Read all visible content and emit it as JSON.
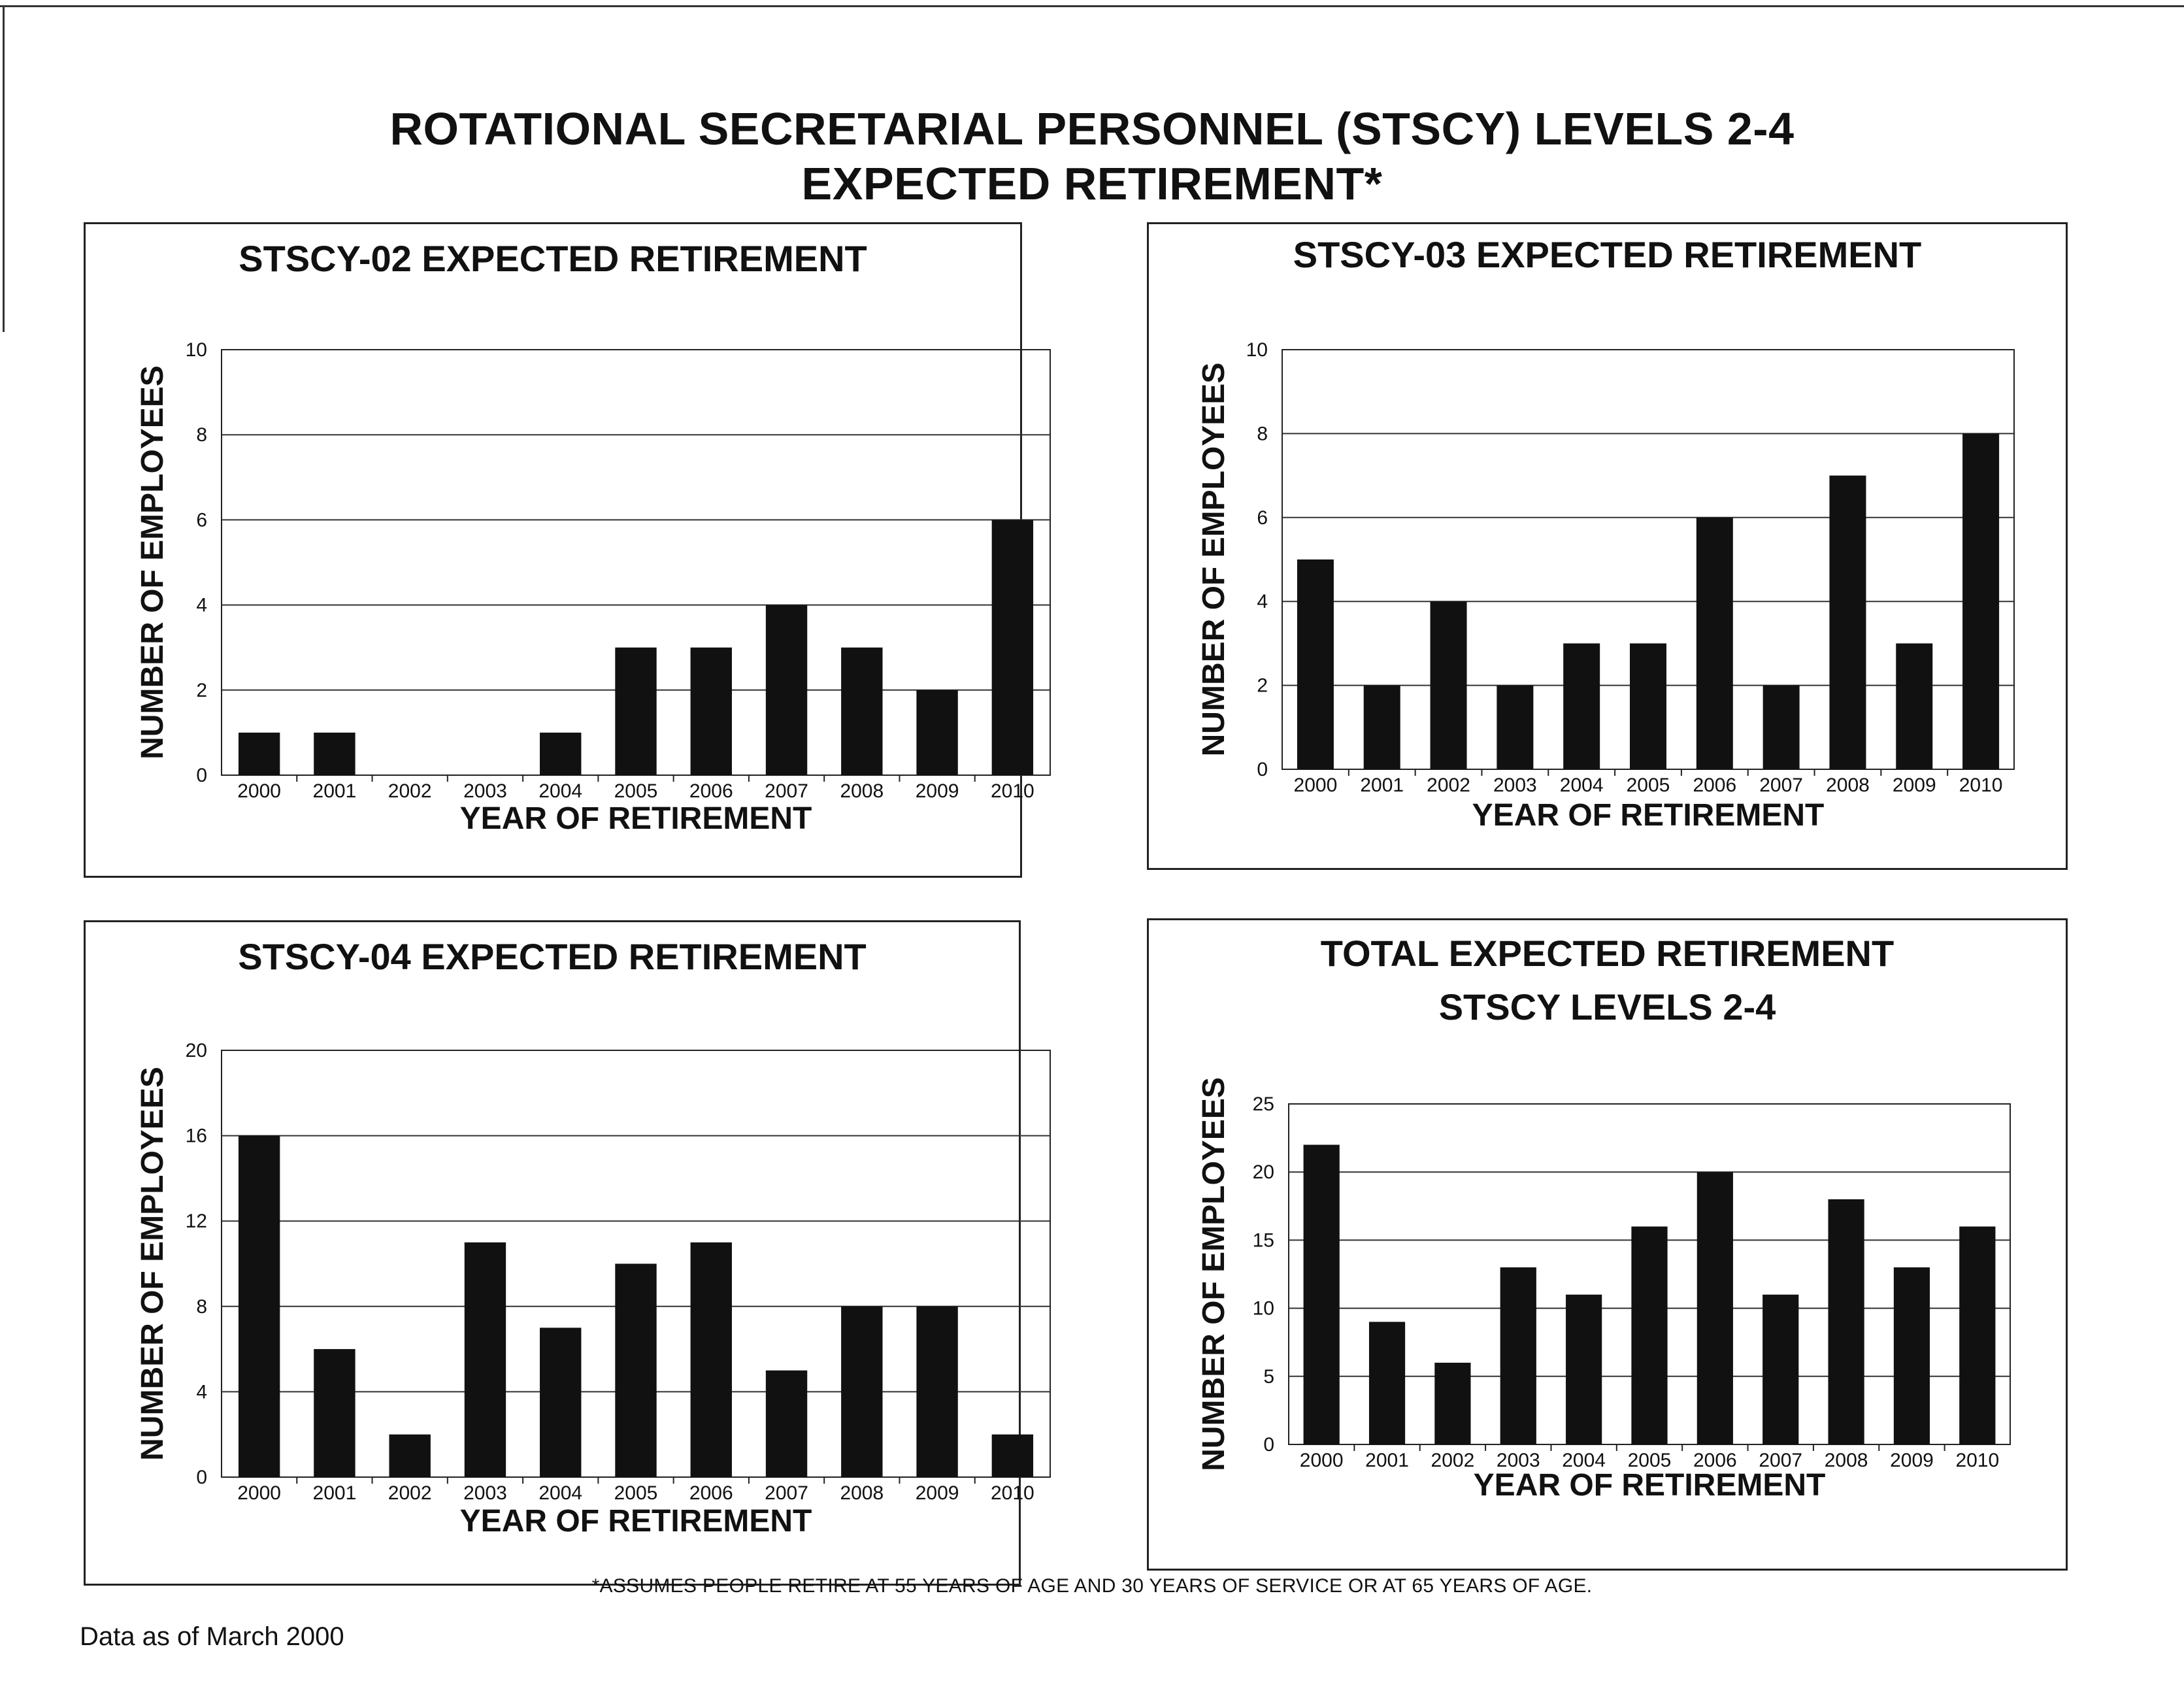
{
  "title_line1": "ROTATIONAL SECRETARIAL PERSONNEL (STSCY) LEVELS 2-4",
  "title_line2": "EXPECTED RETIREMENT*",
  "footnote": "*ASSUMES PEOPLE RETIRE AT 55 YEARS OF AGE AND 30 YEARS OF SERVICE OR AT 65 YEARS OF AGE.",
  "dateline": "Data as of March 2000",
  "chart_data": [
    {
      "type": "bar",
      "title": "STSCY-02 EXPECTED RETIREMENT",
      "xlabel": "YEAR OF RETIREMENT",
      "ylabel": "NUMBER OF EMPLOYEES",
      "categories": [
        "2000",
        "2001",
        "2002",
        "2003",
        "2004",
        "2005",
        "2006",
        "2007",
        "2008",
        "2009",
        "2010"
      ],
      "values": [
        1,
        1,
        0,
        0,
        1,
        3,
        3,
        4,
        3,
        2,
        6
      ],
      "ylim": [
        0,
        10
      ],
      "yticks": [
        0,
        2,
        4,
        6,
        8,
        10
      ],
      "grid": true,
      "bar_color": "#111111"
    },
    {
      "type": "bar",
      "title": "STSCY-03 EXPECTED RETIREMENT",
      "xlabel": "YEAR OF RETIREMENT",
      "ylabel": "NUMBER OF EMPLOYEES",
      "categories": [
        "2000",
        "2001",
        "2002",
        "2003",
        "2004",
        "2005",
        "2006",
        "2007",
        "2008",
        "2009",
        "2010"
      ],
      "values": [
        5,
        2,
        4,
        2,
        3,
        3,
        6,
        2,
        7,
        3,
        8
      ],
      "ylim": [
        0,
        10
      ],
      "yticks": [
        0,
        2,
        4,
        6,
        8,
        10
      ],
      "grid": true,
      "bar_color": "#111111"
    },
    {
      "type": "bar",
      "title": "STSCY-04 EXPECTED RETIREMENT",
      "xlabel": "YEAR OF RETIREMENT",
      "ylabel": "NUMBER OF EMPLOYEES",
      "categories": [
        "2000",
        "2001",
        "2002",
        "2003",
        "2004",
        "2005",
        "2006",
        "2007",
        "2008",
        "2009",
        "2010"
      ],
      "values": [
        16,
        6,
        2,
        11,
        7,
        10,
        11,
        5,
        8,
        8,
        2
      ],
      "ylim": [
        0,
        20
      ],
      "yticks": [
        0,
        4,
        8,
        12,
        16,
        20
      ],
      "grid": true,
      "bar_color": "#111111"
    },
    {
      "type": "bar",
      "title": "TOTAL EXPECTED RETIREMENT",
      "subtitle": "STSCY LEVELS 2-4",
      "xlabel": "YEAR OF RETIREMENT",
      "ylabel": "NUMBER OF EMPLOYEES",
      "categories": [
        "2000",
        "2001",
        "2002",
        "2003",
        "2004",
        "2005",
        "2006",
        "2007",
        "2008",
        "2009",
        "2010"
      ],
      "values": [
        22,
        9,
        6,
        13,
        11,
        16,
        20,
        11,
        18,
        13,
        16
      ],
      "ylim": [
        0,
        25
      ],
      "yticks": [
        0,
        5,
        10,
        15,
        20,
        25
      ],
      "grid": true,
      "bar_color": "#111111"
    }
  ]
}
